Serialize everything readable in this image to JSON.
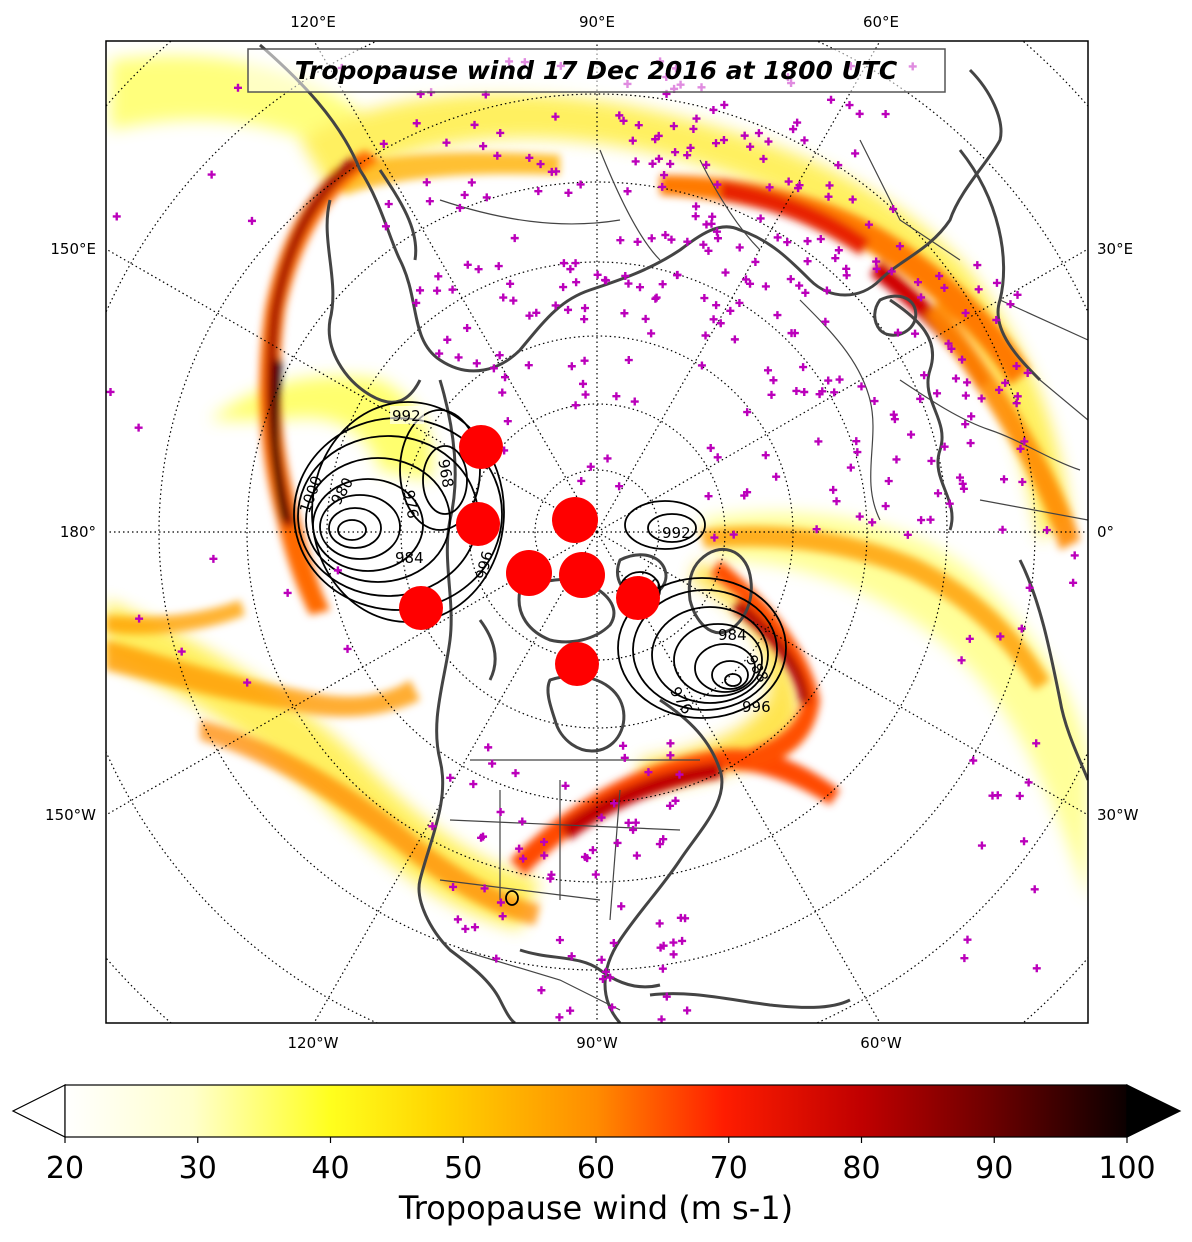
{
  "map": {
    "title": "Tropopause wind 17 Dec 2016 at 1800 UTC",
    "projection": "north-polar-stereographic",
    "center_lon_label": "90°W at bottom",
    "lon_labels": {
      "top": [
        "120°E",
        "90°E",
        "60°E"
      ],
      "bottom": [
        "120°W",
        "90°W",
        "60°W"
      ],
      "left": [
        "150°E",
        "180°",
        "150°W"
      ],
      "right": [
        "30°E",
        "0°",
        "30°W"
      ]
    },
    "graticule": "dotted",
    "coastline_color": "#444444",
    "station_marker_color": "#bb00bb",
    "station_marker": "+",
    "highlight_marker_color": "#ff0000",
    "contour_color": "#000000",
    "pressure_contour_labels": [
      "992",
      "1000",
      "980",
      "984",
      "996",
      "976",
      "968",
      "1000",
      "992",
      "984",
      "988",
      "996",
      "976"
    ]
  },
  "colorbar": {
    "title": "Tropopause wind (m s-1)",
    "ticks": [
      "20",
      "30",
      "40",
      "50",
      "60",
      "70",
      "80",
      "90",
      "100"
    ],
    "min": 20,
    "max": 100,
    "extend": "both",
    "colormap": "hot_r",
    "low_color": "#ffffff",
    "high_color": "#000000"
  }
}
